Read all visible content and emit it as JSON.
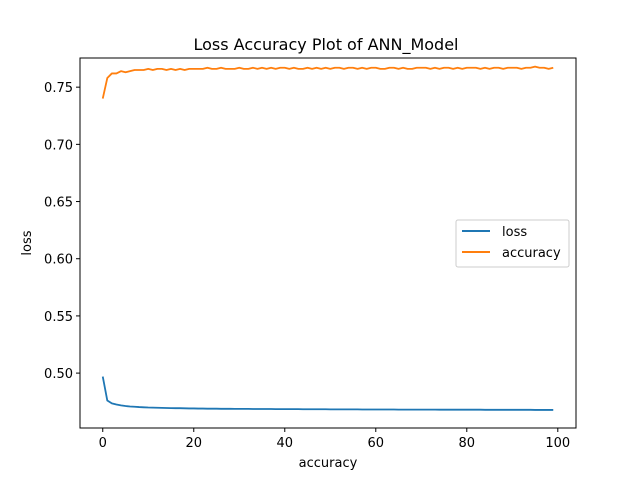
{
  "chart_data": {
    "type": "line",
    "title": "Loss Accuracy Plot of ANN_Model",
    "xlabel": "accuracy",
    "ylabel": "loss",
    "xlim": [
      -5,
      104
    ],
    "ylim": [
      0.452,
      0.7755
    ],
    "xticks": [
      0,
      20,
      40,
      60,
      80,
      100
    ],
    "xtick_labels": [
      "0",
      "20",
      "40",
      "60",
      "80",
      "100"
    ],
    "yticks": [
      0.5,
      0.55,
      0.6,
      0.65,
      0.7,
      0.75
    ],
    "ytick_labels": [
      "0.50",
      "0.55",
      "0.60",
      "0.65",
      "0.70",
      "0.75"
    ],
    "legend_position": "center-right",
    "grid": false,
    "series": [
      {
        "name": "loss",
        "color": "#1f77b4",
        "x": [
          0,
          1,
          2,
          3,
          4,
          5,
          6,
          7,
          8,
          9,
          10,
          11,
          12,
          13,
          14,
          15,
          16,
          17,
          18,
          19,
          20,
          21,
          22,
          23,
          24,
          25,
          26,
          27,
          28,
          29,
          30,
          31,
          32,
          33,
          34,
          35,
          36,
          37,
          38,
          39,
          40,
          41,
          42,
          43,
          44,
          45,
          46,
          47,
          48,
          49,
          50,
          51,
          52,
          53,
          54,
          55,
          56,
          57,
          58,
          59,
          60,
          61,
          62,
          63,
          64,
          65,
          66,
          67,
          68,
          69,
          70,
          71,
          72,
          73,
          74,
          75,
          76,
          77,
          78,
          79,
          80,
          81,
          82,
          83,
          84,
          85,
          86,
          87,
          88,
          89,
          90,
          91,
          92,
          93,
          94,
          95,
          96,
          97,
          98,
          99
        ],
        "y": [
          0.497,
          0.476,
          0.4735,
          0.4725,
          0.4718,
          0.4712,
          0.4708,
          0.4706,
          0.4703,
          0.4701,
          0.4699,
          0.4698,
          0.4697,
          0.4696,
          0.4695,
          0.4694,
          0.4693,
          0.4693,
          0.4692,
          0.4691,
          0.4691,
          0.469,
          0.469,
          0.4689,
          0.4689,
          0.4689,
          0.4688,
          0.4688,
          0.4688,
          0.4687,
          0.4687,
          0.4687,
          0.4687,
          0.4686,
          0.4686,
          0.4686,
          0.4686,
          0.4686,
          0.4685,
          0.4685,
          0.4685,
          0.4685,
          0.4685,
          0.4685,
          0.4684,
          0.4684,
          0.4684,
          0.4684,
          0.4684,
          0.4684,
          0.4683,
          0.4683,
          0.4683,
          0.4683,
          0.4683,
          0.4683,
          0.4683,
          0.4682,
          0.4682,
          0.4682,
          0.4682,
          0.4682,
          0.4682,
          0.4682,
          0.4682,
          0.4681,
          0.4681,
          0.4681,
          0.4681,
          0.4681,
          0.4681,
          0.4681,
          0.4681,
          0.4681,
          0.468,
          0.468,
          0.468,
          0.468,
          0.468,
          0.468,
          0.468,
          0.468,
          0.468,
          0.468,
          0.4679,
          0.4679,
          0.4679,
          0.4679,
          0.4679,
          0.4679,
          0.4679,
          0.4679,
          0.4679,
          0.4679,
          0.4679,
          0.4678,
          0.4678,
          0.4678,
          0.4678,
          0.4678
        ]
      },
      {
        "name": "accuracy",
        "color": "#ff7f0e",
        "x": [
          0,
          1,
          2,
          3,
          4,
          5,
          6,
          7,
          8,
          9,
          10,
          11,
          12,
          13,
          14,
          15,
          16,
          17,
          18,
          19,
          20,
          21,
          22,
          23,
          24,
          25,
          26,
          27,
          28,
          29,
          30,
          31,
          32,
          33,
          34,
          35,
          36,
          37,
          38,
          39,
          40,
          41,
          42,
          43,
          44,
          45,
          46,
          47,
          48,
          49,
          50,
          51,
          52,
          53,
          54,
          55,
          56,
          57,
          58,
          59,
          60,
          61,
          62,
          63,
          64,
          65,
          66,
          67,
          68,
          69,
          70,
          71,
          72,
          73,
          74,
          75,
          76,
          77,
          78,
          79,
          80,
          81,
          82,
          83,
          84,
          85,
          86,
          87,
          88,
          89,
          90,
          91,
          92,
          93,
          94,
          95,
          96,
          97,
          98,
          99
        ],
        "y": [
          0.74,
          0.758,
          0.762,
          0.762,
          0.764,
          0.763,
          0.764,
          0.765,
          0.765,
          0.765,
          0.766,
          0.765,
          0.766,
          0.766,
          0.765,
          0.766,
          0.765,
          0.766,
          0.765,
          0.766,
          0.766,
          0.766,
          0.766,
          0.767,
          0.766,
          0.766,
          0.767,
          0.766,
          0.766,
          0.766,
          0.767,
          0.766,
          0.766,
          0.767,
          0.766,
          0.767,
          0.766,
          0.767,
          0.766,
          0.767,
          0.767,
          0.766,
          0.767,
          0.766,
          0.766,
          0.767,
          0.766,
          0.767,
          0.766,
          0.767,
          0.766,
          0.767,
          0.767,
          0.766,
          0.767,
          0.767,
          0.766,
          0.767,
          0.766,
          0.767,
          0.767,
          0.766,
          0.766,
          0.767,
          0.767,
          0.766,
          0.767,
          0.766,
          0.766,
          0.767,
          0.767,
          0.767,
          0.766,
          0.767,
          0.766,
          0.767,
          0.767,
          0.766,
          0.767,
          0.766,
          0.767,
          0.767,
          0.767,
          0.766,
          0.767,
          0.766,
          0.767,
          0.767,
          0.766,
          0.767,
          0.767,
          0.767,
          0.766,
          0.767,
          0.767,
          0.768,
          0.767,
          0.767,
          0.766,
          0.767
        ]
      }
    ]
  }
}
